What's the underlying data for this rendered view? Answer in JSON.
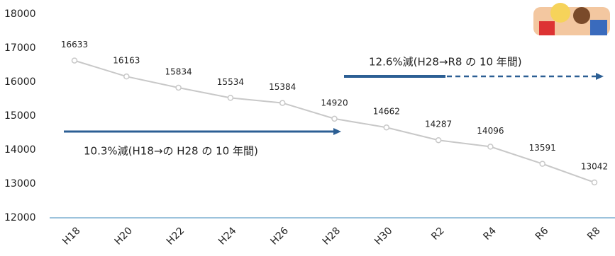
{
  "chart_data": {
    "type": "line",
    "categories": [
      "H18",
      "H20",
      "H22",
      "H24",
      "H26",
      "H28",
      "H30",
      "R2",
      "R4",
      "R6",
      "R8"
    ],
    "values": [
      16633,
      16163,
      15834,
      15534,
      15384,
      14920,
      14662,
      14287,
      14096,
      13591,
      13042
    ],
    "color": "#c8c8c8",
    "ylim": [
      12000,
      18000
    ],
    "yticks": [
      12000,
      13000,
      14000,
      15000,
      16000,
      17000,
      18000
    ],
    "annotations": [
      "12.6%減(H28→R8 の 10 年間)",
      "10.3%減(H18→の H28 の 10 年間)"
    ]
  }
}
